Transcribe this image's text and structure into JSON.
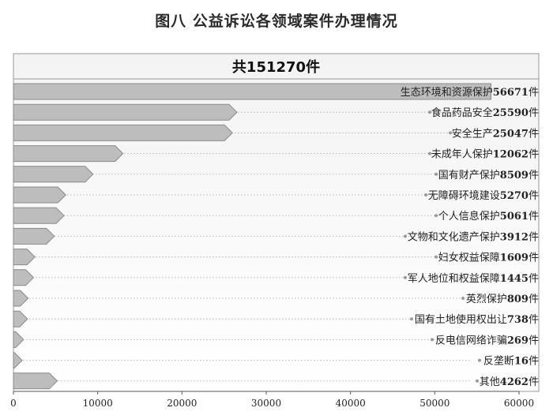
{
  "title": "图八  公益诉讼各领域案件办理情况",
  "chart_data": {
    "type": "bar",
    "orientation": "horizontal",
    "title": "图八  公益诉讼各领域案件办理情况",
    "total_label": "共151270件",
    "unit": "件",
    "categories": [
      "生态环境和资源保护",
      "食品药品安全",
      "安全生产",
      "未成年人保护",
      "国有财产保护",
      "无障碍环境建设",
      "个人信息保护",
      "文物和文化遗产保护",
      "妇女权益保障",
      "军人地位和权益保障",
      "英烈保护",
      "国有土地使用权出让",
      "反电信网络诈骗",
      "反垄断",
      "其他"
    ],
    "values": [
      56671,
      25590,
      25047,
      12062,
      8509,
      5270,
      5061,
      3912,
      1609,
      1445,
      809,
      738,
      269,
      16,
      4262
    ],
    "xlim": [
      0,
      60000
    ],
    "x_ticks": [
      0,
      10000,
      20000,
      30000,
      40000,
      50000,
      60000
    ],
    "grid": false,
    "colors": {
      "bar_fill": "#bdbdbd",
      "bar_stroke": "#8a8a8a",
      "dotted_leader": "#b5b5b5",
      "frame": "#999999",
      "header_fill": "#ffffff"
    }
  }
}
